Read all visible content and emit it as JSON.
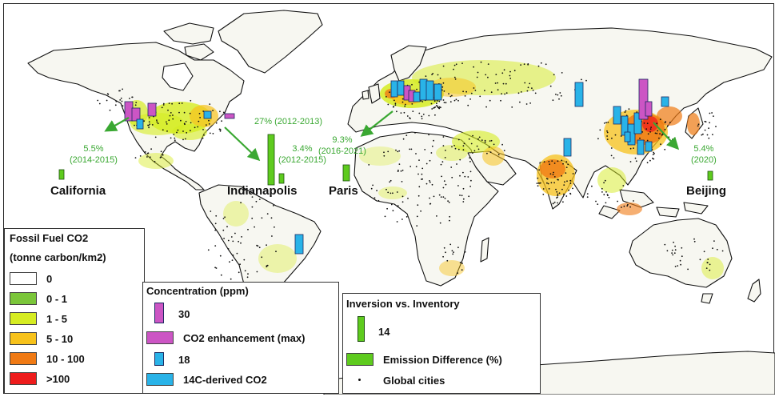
{
  "regions": {
    "california": "California",
    "indianapolis": "Indianapolis",
    "paris": "Paris",
    "beijing": "Beijing"
  },
  "callouts": {
    "california": [
      "5.5%",
      "(2014-2015)"
    ],
    "indianapolis_a": "27% (2012-2013)",
    "indianapolis_b": [
      "3.4%",
      "(2012-2015)"
    ],
    "paris": [
      "9.3%",
      "(2016-2021)"
    ],
    "beijing": [
      "5.4%",
      "(2020)"
    ]
  },
  "legend_ffco2": {
    "title1": "Fossil Fuel CO2",
    "title2": "(tonne carbon/km2)",
    "classes": [
      {
        "label": "0",
        "color": "#ffffff"
      },
      {
        "label": "0 - 1",
        "color": "#7bc63a"
      },
      {
        "label": "1 - 5",
        "color": "#d6ec22"
      },
      {
        "label": "5 - 10",
        "color": "#f7c21b"
      },
      {
        "label": "10 - 100",
        "color": "#f07a14"
      },
      {
        "label": ">100",
        "color": "#ee1c1c"
      }
    ]
  },
  "legend_conc": {
    "title": "Concentration (ppm)",
    "scale1_value": "30",
    "scale1_label": "CO2 enhancement (max)",
    "scale2_value": "18",
    "scale2_label": "14C-derived CO2"
  },
  "legend_inv": {
    "title": "Inversion vs. Inventory",
    "scale_value": "14",
    "scale_label": "Emission Difference (%)",
    "cities_label": "Global cities"
  },
  "colors": {
    "enhancement": "#cc55c4",
    "c14": "#29b3e8",
    "emission_diff": "#5ecb1e",
    "callout": "#3aa832",
    "land": "#f7f7f2"
  },
  "icons": {
    "city": "dot-icon",
    "arrow": "arrow-icon"
  }
}
